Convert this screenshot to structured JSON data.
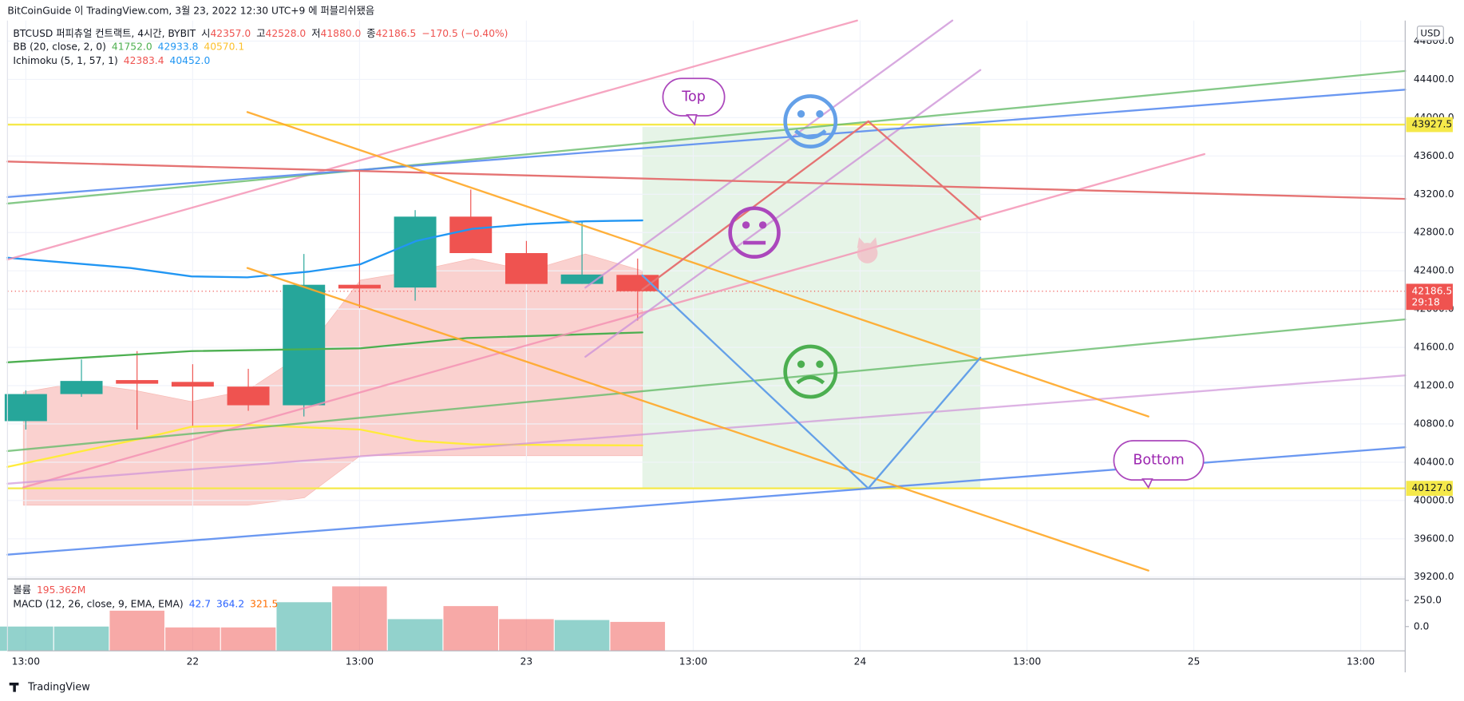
{
  "header": {
    "published": "BitCoinGuide 이 TradingView.com, 3월 23, 2022 12:30 UTC+9 에 퍼블리쉬됐음",
    "currency": "USD",
    "footer": "TradingView"
  },
  "legend": {
    "symbol": "BTCUSD 퍼피츄얼 컨트랙트, 4시간, BYBIT",
    "ohlc": [
      {
        "label": "시",
        "value": "42357.0"
      },
      {
        "label": "고",
        "value": "42528.0"
      },
      {
        "label": "저",
        "value": "41880.0"
      },
      {
        "label": "종",
        "value": "42186.5"
      }
    ],
    "change": "−170.5 (−0.40%)",
    "bb": {
      "name": "BB (20, close, 2, 0)",
      "values": [
        "41752.0",
        "42933.8",
        "40570.1"
      ]
    },
    "ichimoku": {
      "name": "Ichimoku (5, 1, 57, 1)",
      "values": [
        "42383.4",
        "40452.0"
      ]
    },
    "volume": {
      "name": "볼륨",
      "value": "195.362M"
    },
    "macd": {
      "name": "MACD (12, 26, close, 9, EMA, EMA)",
      "values": [
        "42.7",
        "364.2",
        "321.5"
      ]
    }
  },
  "annotations": {
    "top": "Top",
    "bottom": "Bottom"
  },
  "chart_data": {
    "type": "candlestick",
    "up_color": "#26a69a",
    "down_color": "#ef5350",
    "open": [
      40829,
      41112,
      41258,
      41239,
      41190,
      40995,
      42254,
      42225,
      42966,
      42585,
      42263,
      42357
    ],
    "high": [
      41151,
      41473,
      41561,
      41424,
      41376,
      42576,
      43444,
      43034,
      43249,
      42712,
      42907,
      42528
    ],
    "low": [
      40741,
      41083,
      40741,
      40761,
      40937,
      40878,
      42010,
      42088,
      42585,
      42263,
      42263,
      41880
    ],
    "close": [
      41112,
      41249,
      41220,
      41190,
      40995,
      42254,
      42215,
      42966,
      42585,
      42263,
      42361,
      42186.5
    ],
    "volume": [
      164000000,
      164000000,
      271000000,
      158000000,
      158000000,
      328000000,
      435000000,
      214000000,
      302000000,
      214000000,
      208000000,
      195362000
    ],
    "volume_lim": [
      0,
      485000000
    ],
    "xlim": [
      -0.33,
      24.8
    ],
    "xticks": [
      {
        "value": 0,
        "label": "13:00"
      },
      {
        "value": 3,
        "label": "22"
      },
      {
        "value": 6,
        "label": "13:00"
      },
      {
        "value": 9,
        "label": "23"
      },
      {
        "value": 12,
        "label": "13:00"
      },
      {
        "value": 15,
        "label": "24"
      },
      {
        "value": 18,
        "label": "13:00"
      },
      {
        "value": 21,
        "label": "25"
      },
      {
        "value": 24,
        "label": "13:00"
      }
    ],
    "ylim": [
      39180,
      45015
    ],
    "yticks": [
      {
        "value": 39200,
        "label": "39200.0"
      },
      {
        "value": 39600,
        "label": "39600.0"
      },
      {
        "value": 40000,
        "label": "40000.0"
      },
      {
        "value": 40400,
        "label": "40400.0"
      },
      {
        "value": 40800,
        "label": "40800.0"
      },
      {
        "value": 41200,
        "label": "41200.0"
      },
      {
        "value": 41600,
        "label": "41600.0"
      },
      {
        "value": 42000,
        "label": "42000.0"
      },
      {
        "value": 42400,
        "label": "42400.0"
      },
      {
        "value": 42800,
        "label": "42800.0"
      },
      {
        "value": 43200,
        "label": "43200.0"
      },
      {
        "value": 43600,
        "label": "43600.0"
      },
      {
        "value": 44000,
        "label": "44000.0"
      },
      {
        "value": 44400,
        "label": "44400.0"
      },
      {
        "value": 44800,
        "label": "44800.0"
      }
    ],
    "price_lines": [
      {
        "value": 43927.5,
        "label": "43927.5",
        "color": "#f5e94a"
      },
      {
        "value": 40127,
        "label": "40127.0",
        "color": "#f5e94a"
      }
    ],
    "last_price": {
      "value": 42186.5,
      "label": "42186.5",
      "countdown": "29:18",
      "color": "#ef5350"
    },
    "macd_lim": [
      -232,
      455
    ],
    "macd_ticks": [
      {
        "value": 250,
        "label": "250.0"
      },
      {
        "value": 0,
        "label": "0.0"
      }
    ]
  }
}
